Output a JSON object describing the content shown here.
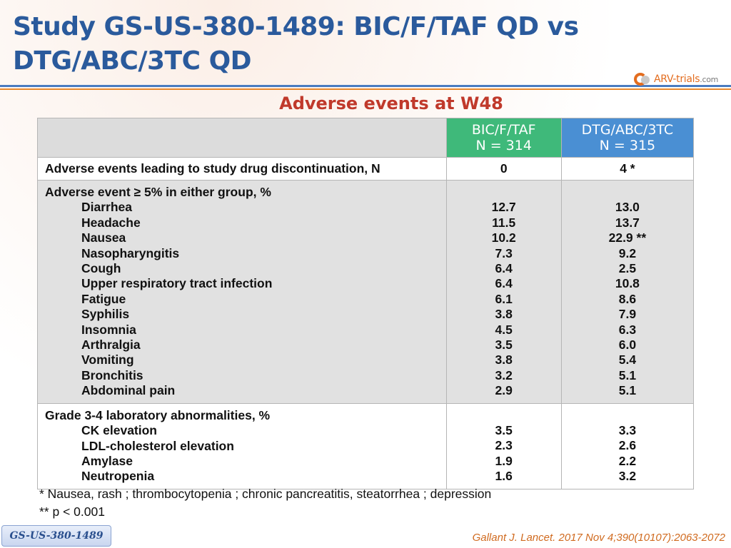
{
  "header": {
    "title_line1": "Study GS-US-380-1489: BIC/F/TAF QD vs",
    "title_line2": "DTG/ABC/3TC QD",
    "logo_text": "ARV-trials",
    "logo_suffix": ".com",
    "logo_icon": "arv-trials-logo-icon"
  },
  "subtitle": "Adverse events at W48",
  "table": {
    "col_bic_line1": "BIC/F/TAF",
    "col_bic_line2": "N = 314",
    "col_dtg_line1": "DTG/ABC/3TC",
    "col_dtg_line2": "N = 315",
    "discontinuation": {
      "label": "Adverse events leading to study drug discontinuation, N",
      "bic": "0",
      "dtg": "4 *"
    },
    "ae_group": {
      "label": "Adverse event ≥ 5% in either group, %",
      "items": [
        {
          "name": "Diarrhea",
          "bic": "12.7",
          "dtg": "13.0"
        },
        {
          "name": "Headache",
          "bic": "11.5",
          "dtg": "13.7"
        },
        {
          "name": "Nausea",
          "bic": "10.2",
          "dtg": "22.9 **"
        },
        {
          "name": "Nasopharyngitis",
          "bic": "7.3",
          "dtg": "9.2"
        },
        {
          "name": "Cough",
          "bic": "6.4",
          "dtg": "2.5"
        },
        {
          "name": "Upper respiratory tract infection",
          "bic": "6.4",
          "dtg": "10.8"
        },
        {
          "name": "Fatigue",
          "bic": "6.1",
          "dtg": "8.6"
        },
        {
          "name": "Syphilis",
          "bic": "3.8",
          "dtg": "7.9"
        },
        {
          "name": "Insomnia",
          "bic": "4.5",
          "dtg": "6.3"
        },
        {
          "name": "Arthralgia",
          "bic": "3.5",
          "dtg": "6.0"
        },
        {
          "name": "Vomiting",
          "bic": "3.8",
          "dtg": "5.4"
        },
        {
          "name": "Bronchitis",
          "bic": "3.2",
          "dtg": "5.1"
        },
        {
          "name": "Abdominal pain",
          "bic": "2.9",
          "dtg": "5.1"
        }
      ]
    },
    "lab_group": {
      "label": "Grade 3-4 laboratory abnormalities, %",
      "items": [
        {
          "name": "CK elevation",
          "bic": "3.5",
          "dtg": "3.3"
        },
        {
          "name": "LDL-cholesterol elevation",
          "bic": "2.3",
          "dtg": "2.6"
        },
        {
          "name": "Amylase",
          "bic": "1.9",
          "dtg": "2.2"
        },
        {
          "name": "Neutropenia",
          "bic": "1.6",
          "dtg": "3.2"
        }
      ]
    }
  },
  "footnotes": {
    "note1": "* Nausea, rash ; thrombocytopenia ; chronic pancreatitis, steatorrhea ; depression",
    "note2": "** p < 0.001"
  },
  "footer": {
    "badge": "GS-US-380-1489",
    "citation": "Gallant J. Lancet. 2017 Nov 4;390(10107):2063-2072"
  },
  "colors": {
    "title": "#2a5a9c",
    "subtitle": "#c0392b",
    "bic_header": "#3fb97a",
    "dtg_header": "#4a8fd3",
    "citation": "#d06a1f"
  }
}
